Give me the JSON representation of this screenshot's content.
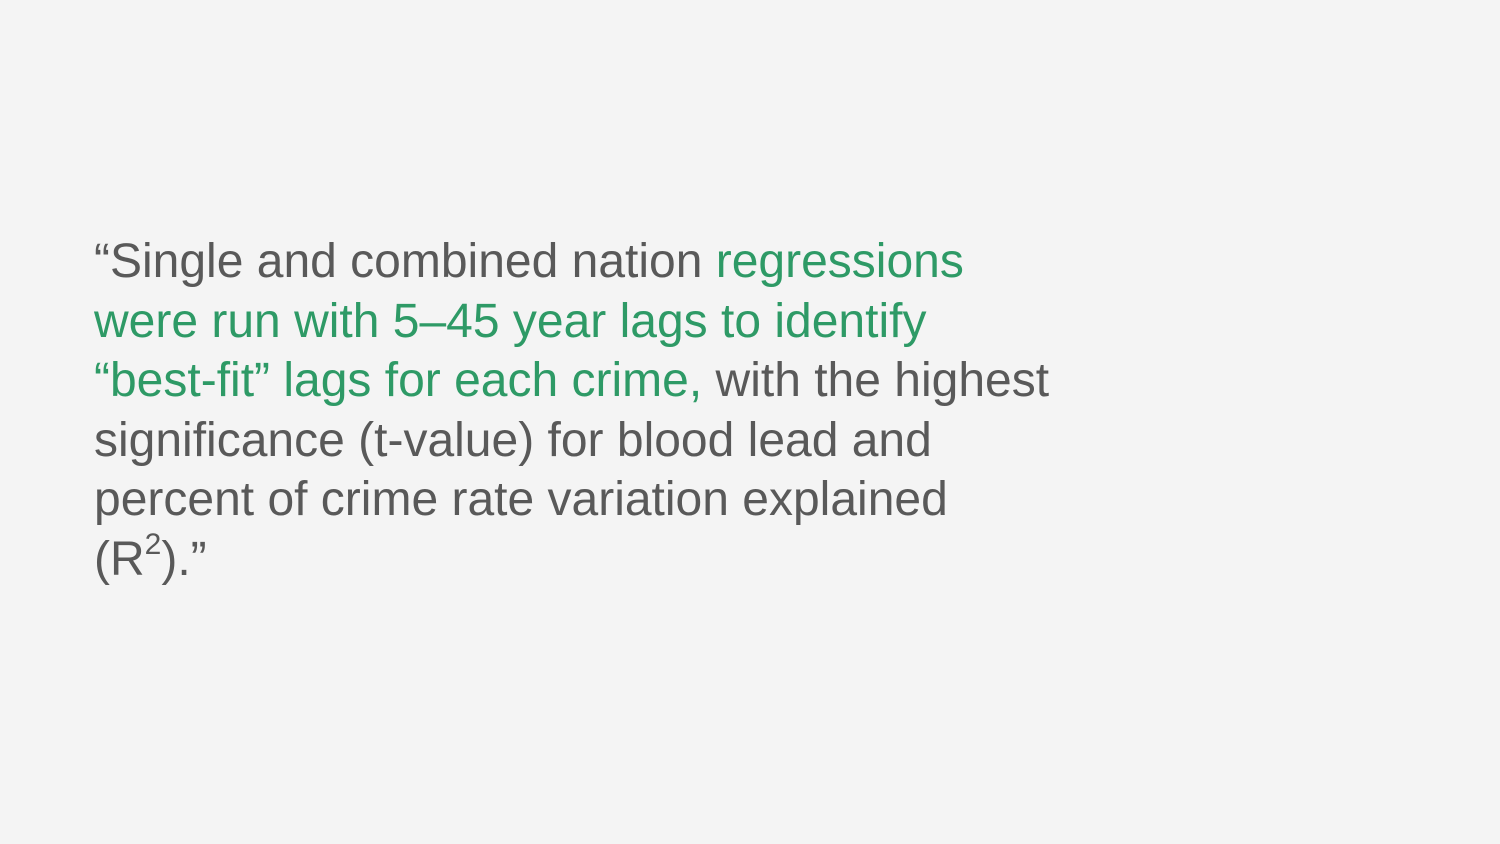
{
  "theme": {
    "background": "#f4f4f4",
    "text_color": "#595959",
    "highlight_color": "#2e9a66"
  },
  "quote": {
    "line1_plain": "“Single and combined nation ",
    "line1_highlight": "regressions",
    "line2_highlight": "were run with 5–45 year lags to identify",
    "line3_highlight": "“best-fit” lags for each crime,",
    "line3_plain": " with the highest",
    "line4_plain": "significance (t-value) for blood lead and",
    "line5_plain": "percent of crime rate variation explained",
    "line6_open": "(R",
    "line6_superscript": "2",
    "line6_close": ").”"
  }
}
